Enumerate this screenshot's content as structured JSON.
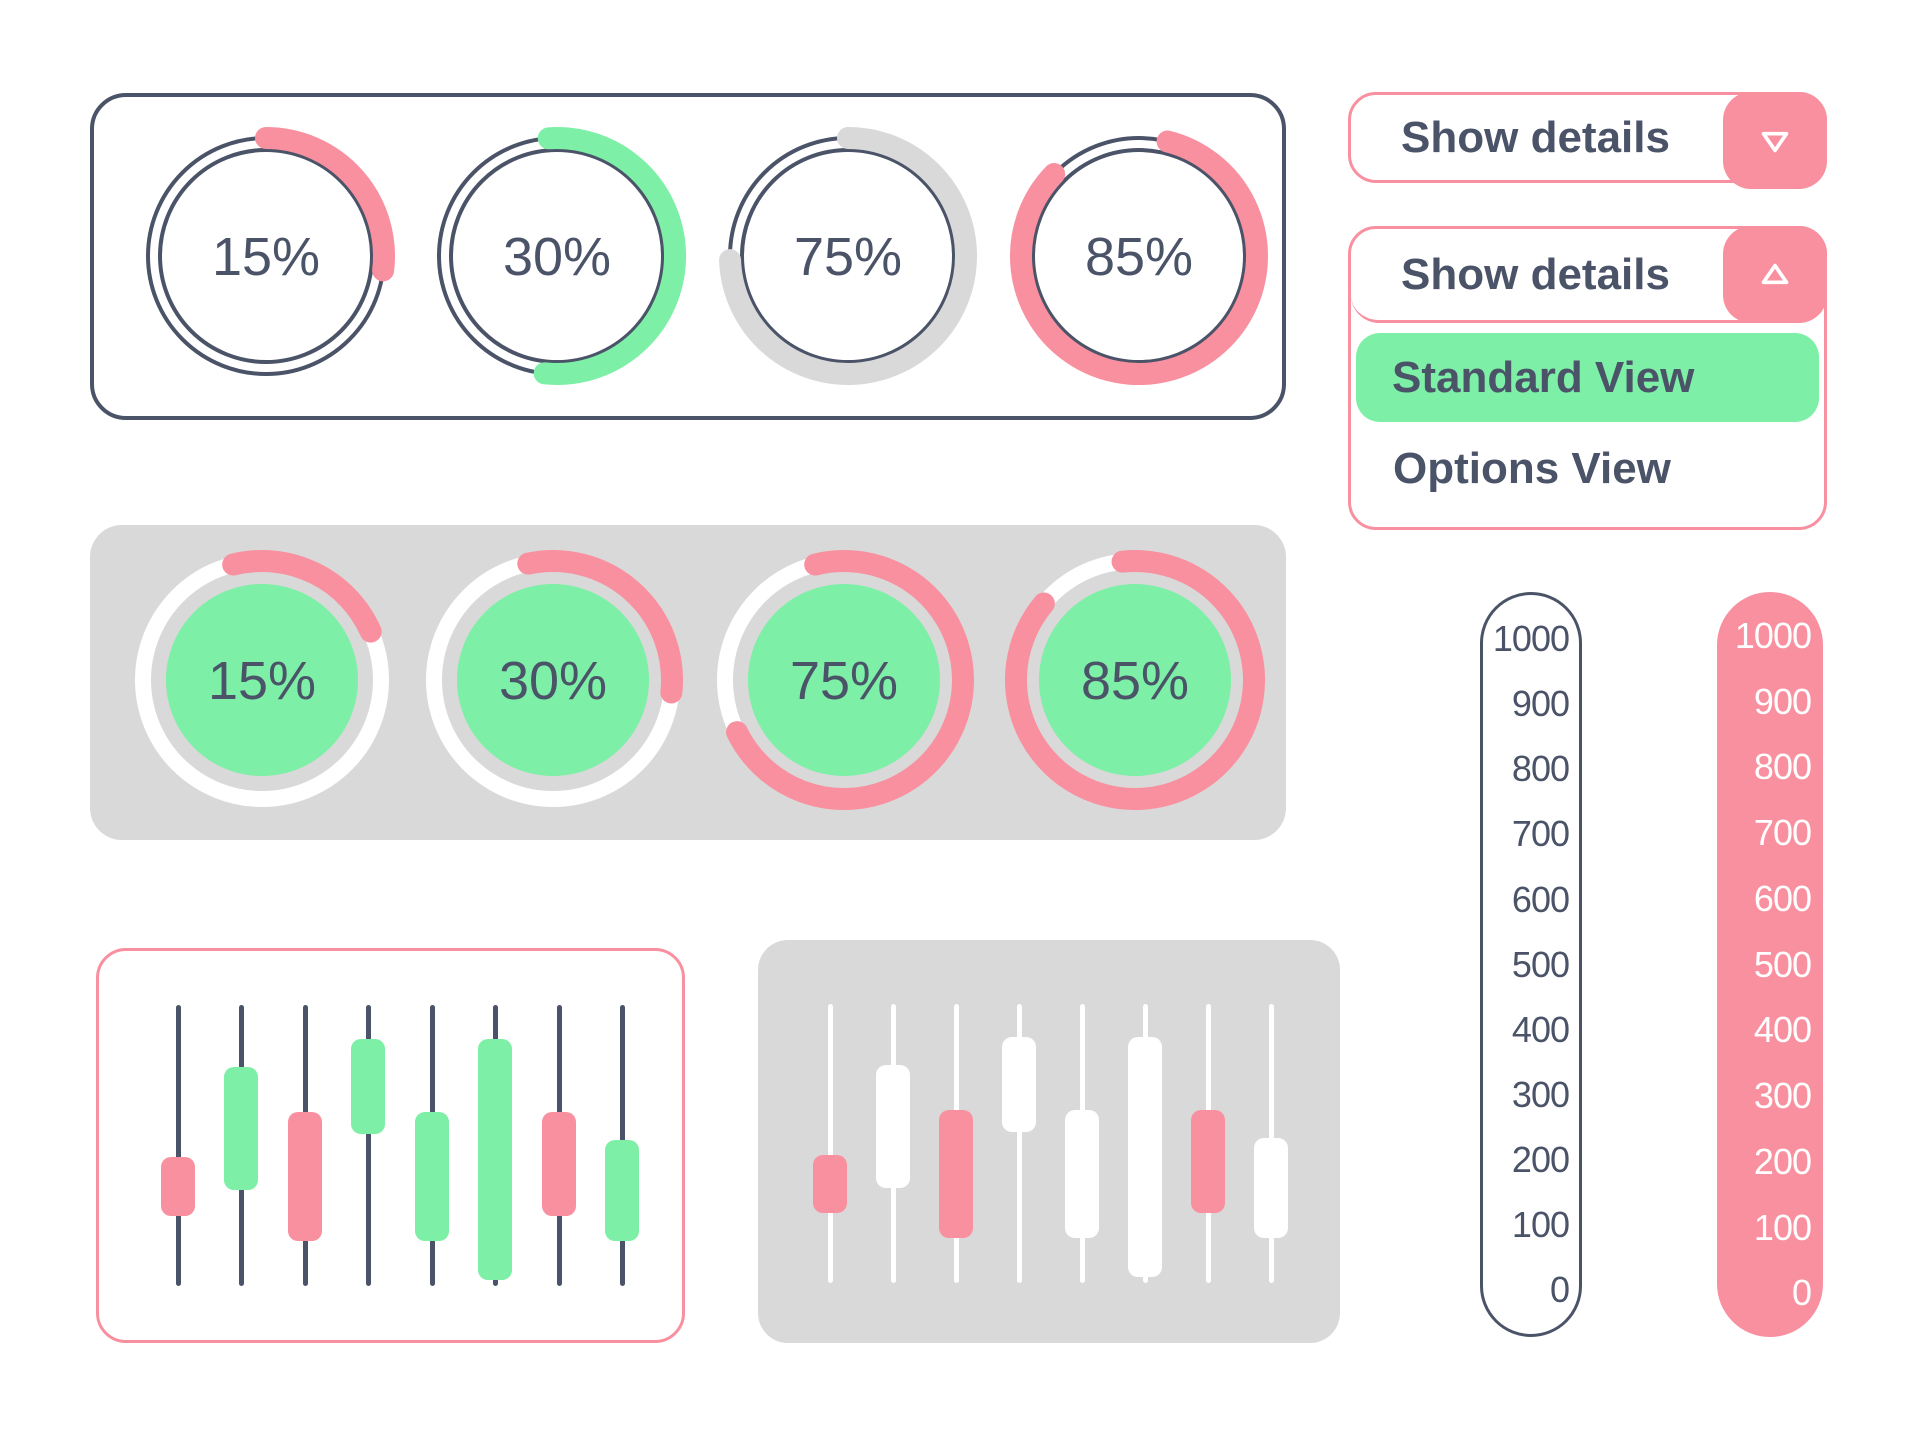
{
  "colors": {
    "navy": "#4A5367",
    "pink": "#F9909F",
    "green": "#7DEFA6",
    "gray": "#D9D9D9",
    "white": "#FFFFFF"
  },
  "outline_gauges": {
    "items": [
      {
        "label": "15%",
        "arc_color": "#F9909F",
        "arc_start": 0,
        "arc_end": 97
      },
      {
        "label": "30%",
        "arc_color": "#7DEFA6",
        "arc_start": -4,
        "arc_end": 186
      },
      {
        "label": "75%",
        "arc_color": "#D9D9D9",
        "arc_start": 0,
        "arc_end": 268
      },
      {
        "label": "85%",
        "arc_color": "#F9909F",
        "arc_start": 14,
        "arc_end": 314
      }
    ]
  },
  "filled_gauges": {
    "items": [
      {
        "label": "15%",
        "arc_color": "#F9909F",
        "arc_start": -14,
        "arc_end": 66
      },
      {
        "label": "30%",
        "arc_color": "#F9909F",
        "arc_start": -12,
        "arc_end": 96
      },
      {
        "label": "75%",
        "arc_color": "#F9909F",
        "arc_start": -14,
        "arc_end": 244
      },
      {
        "label": "85%",
        "arc_color": "#F9909F",
        "arc_start": -6,
        "arc_end": 310
      }
    ]
  },
  "dropdowns": {
    "collapsed": {
      "label": "Show details",
      "chevron": "down-triangle"
    },
    "expanded": {
      "label": "Show details",
      "chevron": "up-triangle",
      "options": [
        {
          "label": "Standard View",
          "selected": true
        },
        {
          "label": "Options View",
          "selected": false
        }
      ]
    }
  },
  "chart_data": [
    {
      "type": "candlestick",
      "name": "outline-candle-chart",
      "wick_color": "#4A5367",
      "candles": [
        {
          "color": "#F9909F",
          "body_start_pct": 54,
          "body_end_pct": 75
        },
        {
          "color": "#7DEFA6",
          "body_start_pct": 22,
          "body_end_pct": 66
        },
        {
          "color": "#F9909F",
          "body_start_pct": 38,
          "body_end_pct": 84
        },
        {
          "color": "#7DEFA6",
          "body_start_pct": 12,
          "body_end_pct": 46
        },
        {
          "color": "#7DEFA6",
          "body_start_pct": 38,
          "body_end_pct": 84
        },
        {
          "color": "#7DEFA6",
          "body_start_pct": 12,
          "body_end_pct": 98
        },
        {
          "color": "#F9909F",
          "body_start_pct": 38,
          "body_end_pct": 75
        },
        {
          "color": "#7DEFA6",
          "body_start_pct": 48,
          "body_end_pct": 84
        }
      ]
    },
    {
      "type": "candlestick",
      "name": "filled-candle-chart",
      "wick_color": "#FFFFFF",
      "candles": [
        {
          "color": "#F9909F",
          "body_start_pct": 54,
          "body_end_pct": 75
        },
        {
          "color": "#FFFFFF",
          "body_start_pct": 22,
          "body_end_pct": 66
        },
        {
          "color": "#F9909F",
          "body_start_pct": 38,
          "body_end_pct": 84
        },
        {
          "color": "#FFFFFF",
          "body_start_pct": 12,
          "body_end_pct": 46
        },
        {
          "color": "#FFFFFF",
          "body_start_pct": 38,
          "body_end_pct": 84
        },
        {
          "color": "#FFFFFF",
          "body_start_pct": 12,
          "body_end_pct": 98
        },
        {
          "color": "#F9909F",
          "body_start_pct": 38,
          "body_end_pct": 75
        },
        {
          "color": "#FFFFFF",
          "body_start_pct": 48,
          "body_end_pct": 84
        }
      ]
    }
  ],
  "scales": {
    "light": {
      "values": [
        "1000",
        "900",
        "800",
        "700",
        "600",
        "500",
        "400",
        "300",
        "200",
        "100",
        "0"
      ]
    },
    "pink": {
      "values": [
        "1000",
        "900",
        "800",
        "700",
        "600",
        "500",
        "400",
        "300",
        "200",
        "100",
        "0"
      ]
    }
  }
}
